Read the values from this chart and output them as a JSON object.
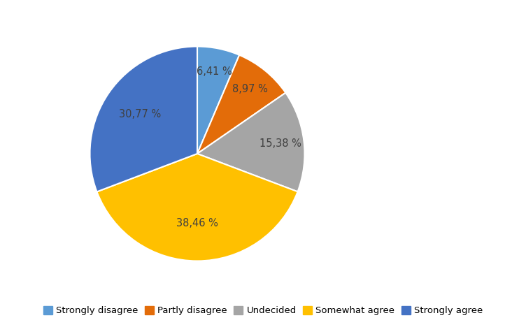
{
  "labels": [
    "Strongly disagree",
    "Partly disagree",
    "Undecided",
    "Somewhat agree",
    "Strongly agree"
  ],
  "values": [
    6.41,
    8.97,
    15.38,
    38.46,
    30.77
  ],
  "colors": [
    "#5B9BD5",
    "#E36C09",
    "#A5A5A5",
    "#FFC000",
    "#4472C4"
  ],
  "pct_labels": [
    "6,41 %",
    "8,97 %",
    "15,38 %",
    "38,46 %",
    "30,77 %"
  ],
  "legend_colors": [
    "#5B9BD5",
    "#E36C09",
    "#A5A5A5",
    "#FFC000",
    "#4472C4"
  ],
  "background_color": "#FFFFFF",
  "text_color": "#404040",
  "label_fontsize": 10.5,
  "legend_fontsize": 9.5,
  "label_radii": [
    0.78,
    0.78,
    0.78,
    0.65,
    0.65
  ]
}
